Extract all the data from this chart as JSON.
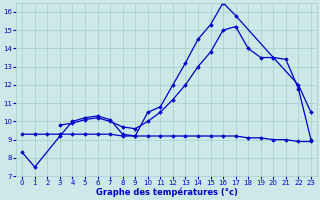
{
  "background_color": "#cce8e8",
  "grid_color": "#aacccc",
  "line_color": "#0000cc",
  "xlabel": "Graphe des températures (°c)",
  "xlim": [
    -0.5,
    23.5
  ],
  "ylim": [
    7,
    16.5
  ],
  "yticks": [
    7,
    8,
    9,
    10,
    11,
    12,
    13,
    14,
    15,
    16
  ],
  "xticks": [
    0,
    1,
    2,
    3,
    4,
    5,
    6,
    7,
    8,
    9,
    10,
    11,
    12,
    13,
    14,
    15,
    16,
    17,
    18,
    19,
    20,
    21,
    22,
    23
  ],
  "series": [
    {
      "x": [
        0,
        1,
        3,
        4,
        5,
        6,
        7,
        8,
        9,
        10,
        11,
        12,
        13,
        14,
        15,
        16,
        17,
        20,
        22,
        23
      ],
      "y": [
        8.3,
        7.5,
        9.2,
        10.0,
        10.2,
        10.3,
        10.1,
        9.3,
        9.2,
        10.5,
        10.8,
        12.0,
        13.2,
        14.5,
        15.3,
        16.5,
        15.8,
        13.5,
        12.0,
        10.5
      ]
    },
    {
      "x": [
        3,
        4,
        5,
        6,
        7,
        8,
        9,
        10,
        11,
        12,
        13,
        14,
        15,
        16,
        17,
        18,
        19,
        20,
        21,
        22,
        23
      ],
      "y": [
        9.8,
        9.9,
        10.1,
        10.2,
        10.0,
        9.7,
        9.6,
        10.0,
        10.5,
        11.2,
        12.0,
        13.0,
        13.8,
        15.0,
        15.2,
        14.0,
        13.5,
        13.5,
        13.4,
        11.8,
        9.0
      ]
    },
    {
      "x": [
        0,
        1,
        2,
        3,
        4,
        5,
        6,
        7,
        8,
        9,
        10,
        11,
        12,
        13,
        14,
        15,
        16,
        17,
        18,
        19,
        20,
        21,
        22,
        23
      ],
      "y": [
        9.3,
        9.3,
        9.3,
        9.3,
        9.3,
        9.3,
        9.3,
        9.3,
        9.2,
        9.2,
        9.2,
        9.2,
        9.2,
        9.2,
        9.2,
        9.2,
        9.2,
        9.2,
        9.1,
        9.1,
        9.0,
        9.0,
        8.9,
        8.9
      ]
    }
  ]
}
